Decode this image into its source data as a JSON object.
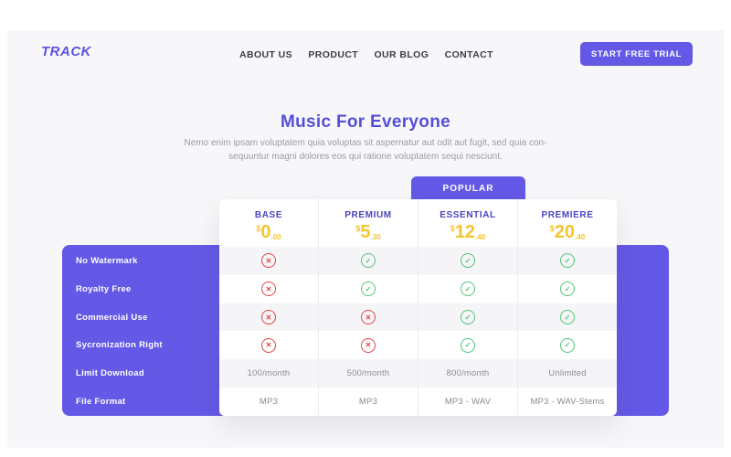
{
  "brand": {
    "logo": "TRACK"
  },
  "nav": {
    "items": [
      "ABOUT US",
      "PRODUCT",
      "OUR BLOG",
      "CONTACT"
    ],
    "cta_label": "START FREE TRIAL"
  },
  "hero": {
    "title": "Music For Everyone",
    "subtitle_line1": "Nemo enim ipsam voluptatem quia voluptas sit aspernatur aut odit aut fugit, sed quia con-",
    "subtitle_line2": "sequuntur magni dolores eos qui ratione voluptatem sequi nesciunt."
  },
  "pricing": {
    "popular_badge": "POPULAR",
    "features": [
      "No Watermark",
      "Royalty Free",
      "Commercial Use",
      "Sycronization Right",
      "Limit Download",
      "File Format"
    ],
    "plans": [
      {
        "name": "BASE",
        "currency": "$",
        "price_int": "0",
        "price_dec": ".00",
        "values": [
          "no",
          "no",
          "no",
          "no",
          "100/month",
          "MP3"
        ]
      },
      {
        "name": "PREMIUM",
        "currency": "$",
        "price_int": "5",
        "price_dec": ".30",
        "values": [
          "yes",
          "yes",
          "no",
          "no",
          "500/month",
          "MP3"
        ]
      },
      {
        "name": "ESSENTIAL",
        "currency": "$",
        "price_int": "12",
        "price_dec": ".40",
        "popular": true,
        "values": [
          "yes",
          "yes",
          "yes",
          "yes",
          "800/month",
          "MP3 - WAV"
        ]
      },
      {
        "name": "PREMIERE",
        "currency": "$",
        "price_int": "20",
        "price_dec": ".40",
        "values": [
          "yes",
          "yes",
          "yes",
          "yes",
          "Unlimited",
          "MP3 - WAV-Stems"
        ]
      }
    ]
  },
  "colors": {
    "accent_purple": "#6459e6",
    "title_purple": "#554fd8",
    "plan_header_purple": "#4a43bf",
    "price_gold": "#f4c52e",
    "cross_red": "#e04343",
    "check_green": "#52c475",
    "panel_gray": "#f7f7f9",
    "stripe_gray": "#f5f5f8"
  }
}
